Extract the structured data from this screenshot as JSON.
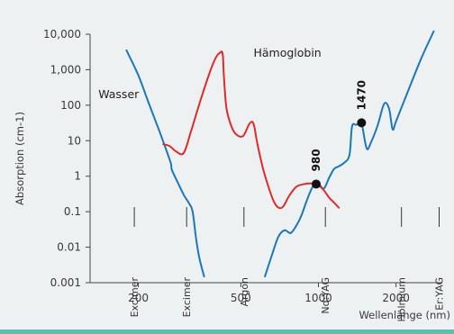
{
  "colors": {
    "background": "#eef1f2",
    "water": "#1a78b9",
    "hemoglobin": "#e02a2a",
    "bottom_bar": "#5bbfb0",
    "axis": "#444444",
    "marker": "#111111"
  },
  "chart_data": {
    "type": "line",
    "title": "",
    "xlabel": "Wellenlänge (nm)",
    "ylabel": "Absorption (cm-1)",
    "x_scale": "log",
    "y_scale": "log",
    "xlim": [
      130,
      3000
    ],
    "ylim": [
      0.001,
      10000
    ],
    "x_ticks": [
      {
        "value": 200,
        "label": "200"
      },
      {
        "value": 500,
        "label": "500"
      },
      {
        "value": 1000,
        "label": "1000"
      },
      {
        "value": 2000,
        "label": "2000"
      }
    ],
    "y_ticks": [
      {
        "value": 10000,
        "label": "10,000"
      },
      {
        "value": 1000,
        "label": "1,000"
      },
      {
        "value": 100,
        "label": "100"
      },
      {
        "value": 10,
        "label": "10"
      },
      {
        "value": 1,
        "label": "1"
      },
      {
        "value": 0.1,
        "label": "0.1"
      },
      {
        "value": 0.01,
        "label": "0.01"
      },
      {
        "value": 0.001,
        "label": "0.001"
      }
    ],
    "grid": false,
    "series": [
      {
        "name": "Wasser",
        "color": "#1a78b9",
        "segments": [
          [
            [
              180,
              3500
            ],
            [
              200,
              700
            ],
            [
              220,
              110
            ],
            [
              240,
              21
            ],
            [
              258,
              5
            ],
            [
              268,
              2.2
            ],
            [
              270,
              1.5
            ],
            [
              285,
              0.65
            ],
            [
              300,
              0.3
            ],
            [
              315,
              0.17
            ],
            [
              325,
              0.1
            ],
            [
              335,
              0.018
            ],
            [
              345,
              0.005
            ],
            [
              360,
              0.0015
            ]
          ],
          [
            [
              620,
              0.0015
            ],
            [
              660,
              0.006
            ],
            [
              700,
              0.02
            ],
            [
              740,
              0.03
            ],
            [
              780,
              0.025
            ],
            [
              820,
              0.04
            ],
            [
              860,
              0.08
            ],
            [
              900,
              0.2
            ],
            [
              950,
              0.5
            ],
            [
              1000,
              0.6
            ],
            [
              1050,
              0.45
            ],
            [
              1100,
              0.9
            ],
            [
              1150,
              1.6
            ],
            [
              1200,
              1.9
            ],
            [
              1260,
              2.4
            ],
            [
              1320,
              4
            ],
            [
              1350,
              25
            ],
            [
              1400,
              28
            ],
            [
              1450,
              30
            ],
            [
              1480,
              25
            ],
            [
              1540,
              6
            ],
            [
              1600,
              9
            ],
            [
              1700,
              28
            ],
            [
              1800,
              110
            ],
            [
              1880,
              80
            ],
            [
              1940,
              21
            ],
            [
              2000,
              35
            ],
            [
              2200,
              200
            ],
            [
              2500,
              2000
            ],
            [
              2800,
              12000
            ]
          ]
        ]
      },
      {
        "name": "Hämoglobin",
        "color": "#e02a2a",
        "segments": [
          [
            [
              250,
              8
            ],
            [
              265,
              7
            ],
            [
              280,
              5
            ],
            [
              300,
              4.5
            ],
            [
              320,
              18
            ],
            [
              350,
              150
            ],
            [
              380,
              900
            ],
            [
              400,
              2200
            ],
            [
              415,
              3000
            ],
            [
              425,
              2800
            ],
            [
              430,
              600
            ],
            [
              440,
              80
            ],
            [
              460,
              25
            ],
            [
              480,
              15
            ],
            [
              510,
              13.5
            ],
            [
              540,
              30
            ],
            [
              560,
              30
            ],
            [
              580,
              8
            ],
            [
              610,
              1.6
            ],
            [
              640,
              0.5
            ],
            [
              670,
              0.2
            ],
            [
              700,
              0.13
            ],
            [
              730,
              0.14
            ],
            [
              770,
              0.28
            ],
            [
              820,
              0.5
            ],
            [
              880,
              0.6
            ],
            [
              950,
              0.62
            ],
            [
              1000,
              0.55
            ],
            [
              1050,
              0.4
            ],
            [
              1100,
              0.25
            ],
            [
              1150,
              0.18
            ],
            [
              1200,
              0.13
            ]
          ]
        ]
      }
    ],
    "series_labels": [
      {
        "text": "Wasser",
        "x": 140,
        "y": 200
      },
      {
        "text": "Hämoglobin",
        "x": 560,
        "y": 2900
      }
    ],
    "markers": [
      {
        "x": 980,
        "y": 0.6,
        "label": "980"
      },
      {
        "x": 1470,
        "y": 32,
        "label": "1470"
      }
    ],
    "lasers": [
      {
        "label": "Excimer",
        "x": 193
      },
      {
        "label": "Excimer",
        "x": 308
      },
      {
        "label": "Argon",
        "x": 514
      },
      {
        "label": "Nd:YAG",
        "x": 1064
      },
      {
        "label": "Holmium",
        "x": 2100
      },
      {
        "label": "Er:YAG",
        "x": 2940
      }
    ]
  }
}
